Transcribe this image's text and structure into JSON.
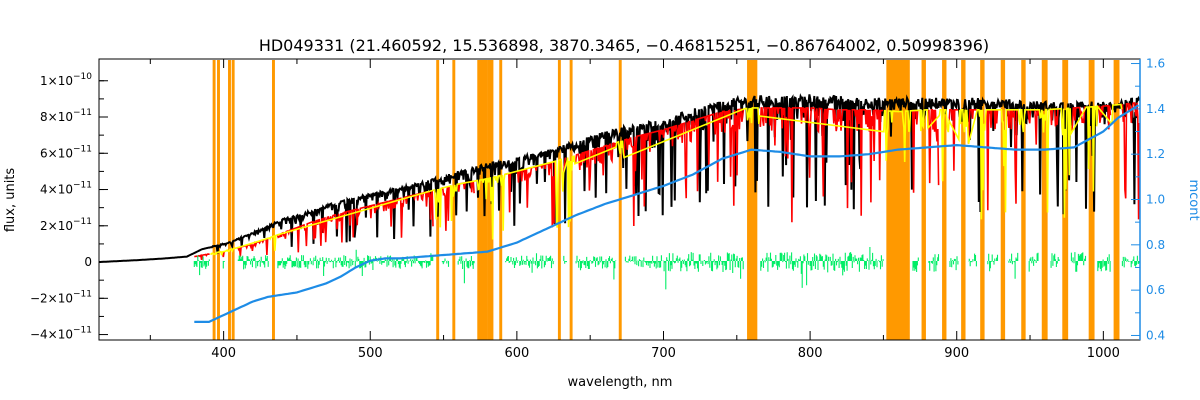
{
  "chart_data": {
    "type": "line",
    "title": "HD049331    (21.460592, 15.536898, 3870.3465, −0.46815251, −0.86764002, 0.50998396)",
    "xlabel": "wavelength, nm",
    "ylabel": "flux, units",
    "y2label": "mcont",
    "xlim": [
      315,
      1025
    ],
    "ylim": [
      -4.3e-11,
      1.12e-10
    ],
    "y2lim": [
      0.38,
      1.62
    ],
    "x_ticks": [
      400,
      500,
      600,
      700,
      800,
      900,
      1000
    ],
    "y_ticks": [
      {
        "value": -4e-11,
        "mant": "−4",
        "exp": "−11"
      },
      {
        "value": -2e-11,
        "mant": "−2",
        "exp": "−11"
      },
      {
        "value": 0,
        "plain": "0"
      },
      {
        "value": 2e-11,
        "mant": "2",
        "exp": "−11"
      },
      {
        "value": 4e-11,
        "mant": "4",
        "exp": "−11"
      },
      {
        "value": 6e-11,
        "mant": "6",
        "exp": "−11"
      },
      {
        "value": 8e-11,
        "mant": "8",
        "exp": "−11"
      },
      {
        "value": 1e-10,
        "mant": "1",
        "exp": "−10"
      }
    ],
    "y2_ticks": [
      0.4,
      0.6,
      0.8,
      1.0,
      1.2,
      1.4,
      1.6
    ],
    "colors": {
      "observed": "#000000",
      "model": "#ff0000",
      "masked": "#ffff00",
      "residual": "#00ee66",
      "mcont": "#1e8ce6",
      "mask_band": "#ff9900",
      "axis2": "#1e8ce6"
    },
    "mask_bands": [
      [
        392.5,
        394.5
      ],
      [
        395.5,
        397.5
      ],
      [
        403,
        405
      ],
      [
        405.5,
        407.5
      ],
      [
        433,
        435
      ],
      [
        545,
        547
      ],
      [
        556,
        558
      ],
      [
        573,
        580
      ],
      [
        580,
        584
      ],
      [
        588,
        590
      ],
      [
        628,
        630
      ],
      [
        636,
        638
      ],
      [
        669.5,
        671.5
      ],
      [
        757,
        764
      ],
      [
        852,
        868
      ],
      [
        876,
        879
      ],
      [
        890,
        893
      ],
      [
        903,
        906
      ],
      [
        916,
        919
      ],
      [
        930,
        933
      ],
      [
        944,
        947
      ],
      [
        958,
        962
      ],
      [
        972,
        976
      ],
      [
        990,
        994
      ],
      [
        1007,
        1011
      ]
    ],
    "series": [
      {
        "key": "observed",
        "x": [
          315,
          340,
          360,
          375,
          380,
          385,
          395,
          405,
          420,
          440,
          460,
          480,
          500,
          520,
          540,
          560,
          580,
          600,
          620,
          640,
          660,
          680,
          700,
          720,
          740,
          760,
          780,
          800,
          820,
          840,
          860,
          880,
          900,
          920,
          940,
          960,
          980,
          1000,
          1025
        ],
        "y": [
          0.0,
          1e-12,
          2e-12,
          3e-12,
          5e-12,
          7e-12,
          9e-12,
          1.1e-11,
          1.6e-11,
          2.3e-11,
          2.8e-11,
          3.3e-11,
          3.7e-11,
          4e-11,
          4.4e-11,
          4.9e-11,
          5.3e-11,
          5.6e-11,
          6e-11,
          6.5e-11,
          7e-11,
          7.4e-11,
          7.7e-11,
          8.2e-11,
          8.7e-11,
          8.9e-11,
          8.9e-11,
          9e-11,
          8.9e-11,
          8.8e-11,
          8.8e-11,
          8.8e-11,
          8.8e-11,
          8.8e-11,
          8.7e-11,
          8.6e-11,
          8.6e-11,
          8.6e-11,
          8.8e-11
        ]
      },
      {
        "key": "model",
        "x": [
          380,
          400,
          420,
          440,
          460,
          480,
          500,
          520,
          540,
          560,
          580,
          600,
          620,
          640,
          660,
          680,
          700,
          720,
          740,
          760,
          780,
          800,
          820,
          840,
          860,
          880,
          900,
          920,
          940,
          960,
          980,
          1000,
          1025
        ],
        "y": [
          3e-12,
          6e-12,
          1e-11,
          1.6e-11,
          2.2e-11,
          2.7e-11,
          3.1e-11,
          3.5e-11,
          3.9e-11,
          4.3e-11,
          4.6e-11,
          5e-11,
          5.4e-11,
          5.9e-11,
          6.4e-11,
          6.9e-11,
          7.3e-11,
          7.8e-11,
          8.3e-11,
          8.5e-11,
          8.5e-11,
          8.5e-11,
          8.4e-11,
          8.4e-11,
          8.3e-11,
          8.4e-11,
          8.4e-11,
          8.4e-11,
          8.4e-11,
          8.4e-11,
          8.5e-11,
          8.6e-11,
          8.8e-11
        ]
      },
      {
        "key": "residual",
        "x": [
          380,
          1025
        ],
        "y": [
          0.0,
          0.0
        ]
      },
      {
        "key": "mcont",
        "axis": "right",
        "x": [
          380,
          390,
          400,
          410,
          420,
          430,
          440,
          450,
          460,
          470,
          480,
          490,
          500,
          510,
          520,
          540,
          560,
          580,
          600,
          620,
          640,
          660,
          680,
          700,
          720,
          740,
          760,
          780,
          800,
          820,
          840,
          860,
          880,
          900,
          920,
          940,
          960,
          980,
          1000,
          1010,
          1025
        ],
        "y": [
          0.46,
          0.46,
          0.49,
          0.52,
          0.55,
          0.57,
          0.58,
          0.59,
          0.61,
          0.63,
          0.66,
          0.7,
          0.73,
          0.74,
          0.74,
          0.75,
          0.76,
          0.77,
          0.81,
          0.87,
          0.93,
          0.98,
          1.02,
          1.06,
          1.11,
          1.18,
          1.22,
          1.21,
          1.19,
          1.19,
          1.2,
          1.22,
          1.23,
          1.24,
          1.23,
          1.22,
          1.22,
          1.23,
          1.3,
          1.36,
          1.42
        ]
      }
    ]
  }
}
